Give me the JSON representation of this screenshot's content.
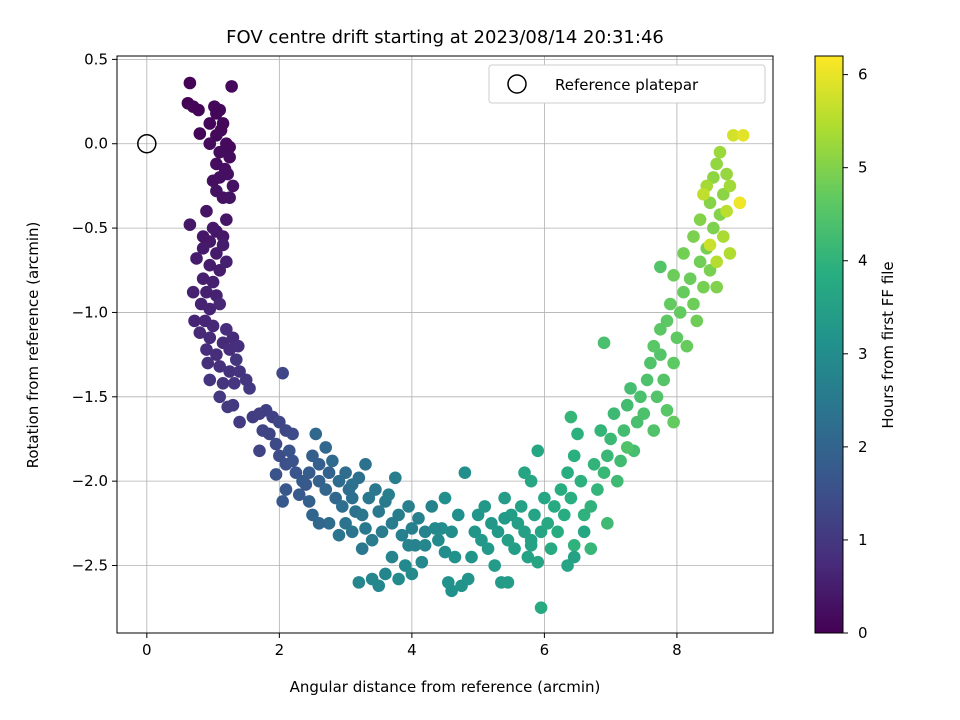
{
  "chart_data": {
    "type": "scatter",
    "title": "FOV centre drift starting at 2023/08/14 20:31:46",
    "xlabel": "Angular distance from reference (arcmin)",
    "ylabel": "Rotation from reference (arcmin)",
    "xlim": [
      -0.45,
      9.45
    ],
    "ylim": [
      -2.9,
      0.52
    ],
    "xticks": [
      0,
      2,
      4,
      6,
      8
    ],
    "yticks": [
      0.5,
      0.0,
      -0.5,
      -1.0,
      -1.5,
      -2.0,
      -2.5
    ],
    "xtick_labels": [
      "0",
      "2",
      "4",
      "6",
      "8"
    ],
    "ytick_labels": [
      "0.5",
      "0.0",
      "−0.5",
      "−1.0",
      "−1.5",
      "−2.0",
      "−2.5"
    ],
    "grid": true,
    "colorbar": {
      "label": "Hours from first FF file",
      "range": [
        0,
        6.2
      ],
      "ticks": [
        0,
        1,
        2,
        3,
        4,
        5,
        6
      ],
      "tick_labels": [
        "0",
        "1",
        "2",
        "3",
        "4",
        "5",
        "6"
      ],
      "colormap": "viridis"
    },
    "legend": {
      "position": "top-right",
      "label": "Reference platepar"
    },
    "reference_point": {
      "x": 0.0,
      "y": 0.0
    },
    "points": [
      [
        0.62,
        0.24,
        0.02
      ],
      [
        0.65,
        0.36,
        0.03
      ],
      [
        0.7,
        0.22,
        0.05
      ],
      [
        0.78,
        0.2,
        0.07
      ],
      [
        0.8,
        0.06,
        0.08
      ],
      [
        0.95,
        0.12,
        0.09
      ],
      [
        1.02,
        0.22,
        0.11
      ],
      [
        1.1,
        0.2,
        0.12
      ],
      [
        1.28,
        0.34,
        0.13
      ],
      [
        1.05,
        0.05,
        0.14
      ],
      [
        1.12,
        0.08,
        0.15
      ],
      [
        1.2,
        0.0,
        0.17
      ],
      [
        0.95,
        0.0,
        0.18
      ],
      [
        1.1,
        -0.05,
        0.19
      ],
      [
        1.25,
        -0.08,
        0.2
      ],
      [
        1.05,
        -0.12,
        0.22
      ],
      [
        1.18,
        -0.15,
        0.23
      ],
      [
        1.0,
        -0.22,
        0.24
      ],
      [
        1.1,
        -0.2,
        0.25
      ],
      [
        1.22,
        -0.18,
        0.26
      ],
      [
        1.3,
        -0.25,
        0.28
      ],
      [
        1.05,
        -0.28,
        0.29
      ],
      [
        1.15,
        -0.32,
        0.3
      ],
      [
        1.25,
        -0.32,
        0.31
      ],
      [
        0.9,
        -0.4,
        0.33
      ],
      [
        1.2,
        -0.45,
        0.35
      ],
      [
        1.05,
        -0.52,
        0.37
      ],
      [
        0.65,
        -0.48,
        0.38
      ],
      [
        1.15,
        -0.55,
        0.4
      ],
      [
        0.95,
        -0.58,
        0.42
      ],
      [
        0.85,
        -0.62,
        0.44
      ],
      [
        1.05,
        -0.65,
        0.45
      ],
      [
        0.75,
        -0.68,
        0.47
      ],
      [
        0.95,
        -0.72,
        0.49
      ],
      [
        1.1,
        -0.75,
        0.5
      ],
      [
        0.85,
        -0.8,
        0.52
      ],
      [
        1.0,
        -0.82,
        0.54
      ],
      [
        0.9,
        -0.88,
        0.56
      ],
      [
        1.05,
        -0.9,
        0.57
      ],
      [
        0.7,
        -0.88,
        0.58
      ],
      [
        0.82,
        -0.95,
        0.6
      ],
      [
        0.95,
        -0.98,
        0.62
      ],
      [
        0.72,
        -1.05,
        0.64
      ],
      [
        0.88,
        -1.05,
        0.66
      ],
      [
        1.0,
        -1.08,
        0.68
      ],
      [
        0.8,
        -1.12,
        0.7
      ],
      [
        0.95,
        -1.15,
        0.72
      ],
      [
        1.15,
        -1.18,
        0.74
      ],
      [
        1.3,
        -1.15,
        0.75
      ],
      [
        0.9,
        -1.22,
        0.77
      ],
      [
        1.05,
        -1.25,
        0.79
      ],
      [
        1.25,
        -1.22,
        0.8
      ],
      [
        1.38,
        -1.2,
        0.82
      ],
      [
        0.92,
        -1.3,
        0.84
      ],
      [
        1.1,
        -1.32,
        0.86
      ],
      [
        1.25,
        -1.35,
        0.88
      ],
      [
        1.4,
        -1.35,
        0.9
      ],
      [
        0.95,
        -1.4,
        0.92
      ],
      [
        1.15,
        -1.42,
        0.94
      ],
      [
        1.32,
        -1.42,
        0.96
      ],
      [
        1.5,
        -1.4,
        0.98
      ],
      [
        1.1,
        -1.5,
        1.0
      ],
      [
        1.3,
        -1.55,
        1.02
      ],
      [
        1.22,
        -1.56,
        1.04
      ],
      [
        1.4,
        -1.65,
        1.06
      ],
      [
        1.6,
        -1.62,
        1.1
      ],
      [
        1.7,
        -1.6,
        1.13
      ],
      [
        1.8,
        -1.58,
        1.16
      ],
      [
        1.9,
        -1.62,
        1.2
      ],
      [
        1.75,
        -1.7,
        1.23
      ],
      [
        1.85,
        -1.72,
        1.26
      ],
      [
        2.0,
        -1.65,
        1.3
      ],
      [
        2.05,
        -1.36,
        1.32
      ],
      [
        2.1,
        -1.7,
        1.35
      ],
      [
        1.95,
        -1.78,
        1.38
      ],
      [
        2.2,
        -1.72,
        1.4
      ],
      [
        2.0,
        -1.85,
        1.45
      ],
      [
        2.1,
        -1.9,
        1.5
      ],
      [
        2.2,
        -1.88,
        1.55
      ],
      [
        1.95,
        -1.96,
        1.58
      ],
      [
        2.25,
        -1.95,
        1.62
      ],
      [
        2.4,
        -2.02,
        1.66
      ],
      [
        2.1,
        -2.05,
        1.7
      ],
      [
        2.05,
        -2.12,
        1.73
      ],
      [
        2.3,
        -2.08,
        1.76
      ],
      [
        2.45,
        -1.95,
        1.8
      ],
      [
        2.5,
        -1.85,
        1.83
      ],
      [
        2.6,
        -1.9,
        1.86
      ],
      [
        2.45,
        -2.12,
        1.9
      ],
      [
        2.6,
        -2.0,
        1.93
      ],
      [
        2.75,
        -1.95,
        1.96
      ],
      [
        2.5,
        -2.2,
        2.0
      ],
      [
        2.7,
        -2.05,
        2.03
      ],
      [
        2.85,
        -2.1,
        2.06
      ],
      [
        2.55,
        -1.72,
        2.08
      ],
      [
        2.7,
        -1.8,
        2.1
      ],
      [
        2.8,
        -1.88,
        2.12
      ],
      [
        2.9,
        -2.0,
        2.15
      ],
      [
        3.0,
        -1.95,
        2.18
      ],
      [
        3.05,
        -2.05,
        2.2
      ],
      [
        2.95,
        -2.15,
        2.22
      ],
      [
        3.1,
        -2.1,
        2.25
      ],
      [
        3.2,
        -1.98,
        2.28
      ],
      [
        3.3,
        -1.9,
        2.3
      ],
      [
        3.15,
        -2.18,
        2.32
      ],
      [
        3.0,
        -2.25,
        2.35
      ],
      [
        3.1,
        -2.3,
        2.38
      ],
      [
        2.9,
        -2.32,
        2.4
      ],
      [
        3.25,
        -2.2,
        2.42
      ],
      [
        3.35,
        -2.1,
        2.44
      ],
      [
        3.45,
        -2.05,
        2.46
      ],
      [
        3.3,
        -2.28,
        2.48
      ],
      [
        3.5,
        -2.18,
        2.5
      ],
      [
        3.6,
        -2.12,
        2.52
      ],
      [
        3.4,
        -2.35,
        2.54
      ],
      [
        3.55,
        -2.3,
        2.56
      ],
      [
        3.7,
        -2.25,
        2.58
      ],
      [
        3.8,
        -2.2,
        2.6
      ],
      [
        3.75,
        -1.98,
        2.62
      ],
      [
        3.95,
        -2.15,
        2.64
      ],
      [
        4.0,
        -2.28,
        2.66
      ],
      [
        3.85,
        -2.32,
        2.68
      ],
      [
        4.1,
        -2.22,
        2.7
      ],
      [
        4.2,
        -2.3,
        2.72
      ],
      [
        4.05,
        -2.38,
        2.74
      ],
      [
        4.3,
        -2.15,
        2.76
      ],
      [
        3.7,
        -2.45,
        2.78
      ],
      [
        3.6,
        -2.55,
        2.8
      ],
      [
        3.4,
        -2.58,
        2.82
      ],
      [
        3.2,
        -2.6,
        2.84
      ],
      [
        3.5,
        -2.62,
        2.86
      ],
      [
        4.15,
        -2.48,
        2.88
      ],
      [
        3.9,
        -2.5,
        2.9
      ],
      [
        4.0,
        -2.55,
        2.92
      ],
      [
        3.8,
        -2.58,
        2.94
      ],
      [
        4.4,
        -2.35,
        2.96
      ],
      [
        4.5,
        -2.42,
        2.98
      ],
      [
        4.45,
        -2.28,
        3.0
      ],
      [
        4.6,
        -2.3,
        3.02
      ],
      [
        4.7,
        -2.2,
        3.04
      ],
      [
        4.8,
        -1.95,
        3.06
      ],
      [
        4.5,
        -2.1,
        3.08
      ],
      [
        4.65,
        -2.45,
        3.1
      ],
      [
        4.55,
        -2.6,
        3.12
      ],
      [
        4.6,
        -2.65,
        3.14
      ],
      [
        4.75,
        -2.62,
        3.16
      ],
      [
        4.85,
        -2.58,
        3.18
      ],
      [
        4.95,
        -2.3,
        3.2
      ],
      [
        4.9,
        -2.45,
        3.22
      ],
      [
        5.0,
        -2.2,
        3.24
      ],
      [
        5.05,
        -2.35,
        3.26
      ],
      [
        5.1,
        -2.15,
        3.28
      ],
      [
        5.2,
        -2.25,
        3.3
      ],
      [
        5.15,
        -2.4,
        3.32
      ],
      [
        5.3,
        -2.3,
        3.34
      ],
      [
        5.25,
        -2.5,
        3.36
      ],
      [
        5.35,
        -2.6,
        3.38
      ],
      [
        5.4,
        -2.1,
        3.4
      ],
      [
        5.5,
        -2.2,
        3.42
      ],
      [
        5.45,
        -2.35,
        3.44
      ],
      [
        5.55,
        -2.4,
        3.46
      ],
      [
        5.6,
        -2.25,
        3.48
      ],
      [
        5.7,
        -2.3,
        3.5
      ],
      [
        5.65,
        -2.15,
        3.52
      ],
      [
        5.75,
        -2.45,
        3.54
      ],
      [
        5.8,
        -2.35,
        3.56
      ],
      [
        5.85,
        -2.2,
        3.58
      ],
      [
        5.9,
        -2.48,
        3.6
      ],
      [
        5.95,
        -2.3,
        3.62
      ],
      [
        5.7,
        -1.95,
        3.64
      ],
      [
        5.8,
        -2.0,
        3.66
      ],
      [
        5.9,
        -1.82,
        3.68
      ],
      [
        6.0,
        -2.1,
        3.7
      ],
      [
        6.05,
        -2.25,
        3.72
      ],
      [
        6.1,
        -2.4,
        3.74
      ],
      [
        5.95,
        -2.75,
        3.76
      ],
      [
        6.15,
        -2.15,
        3.78
      ],
      [
        6.2,
        -2.3,
        3.8
      ],
      [
        6.3,
        -2.2,
        3.82
      ],
      [
        6.25,
        -2.05,
        3.84
      ],
      [
        6.35,
        -1.95,
        3.86
      ],
      [
        6.4,
        -2.1,
        3.88
      ],
      [
        6.45,
        -1.85,
        3.9
      ],
      [
        6.5,
        -1.72,
        3.92
      ],
      [
        6.55,
        -2.0,
        3.94
      ],
      [
        6.6,
        -2.2,
        3.96
      ],
      [
        6.45,
        -2.38,
        3.98
      ],
      [
        6.7,
        -2.15,
        4.0
      ],
      [
        6.75,
        -1.9,
        4.02
      ],
      [
        6.8,
        -2.05,
        4.04
      ],
      [
        6.85,
        -1.7,
        4.06
      ],
      [
        6.4,
        -1.62,
        4.08
      ],
      [
        6.7,
        -2.4,
        4.1
      ],
      [
        6.9,
        -1.95,
        4.12
      ],
      [
        6.95,
        -1.85,
        4.14
      ],
      [
        7.0,
        -1.75,
        4.16
      ],
      [
        7.05,
        -1.6,
        4.18
      ],
      [
        6.95,
        -2.25,
        4.2
      ],
      [
        7.1,
        -2.0,
        4.22
      ],
      [
        7.15,
        -1.88,
        4.24
      ],
      [
        7.2,
        -1.7,
        4.26
      ],
      [
        7.25,
        -1.55,
        4.28
      ],
      [
        7.3,
        -1.45,
        4.3
      ],
      [
        7.35,
        -1.82,
        4.32
      ],
      [
        7.4,
        -1.65,
        4.34
      ],
      [
        6.9,
        -1.18,
        4.36
      ],
      [
        7.45,
        -1.5,
        4.38
      ],
      [
        7.5,
        -1.6,
        4.4
      ],
      [
        7.55,
        -1.4,
        4.42
      ],
      [
        7.6,
        -1.3,
        4.44
      ],
      [
        7.65,
        -1.7,
        4.46
      ],
      [
        7.7,
        -1.5,
        4.48
      ],
      [
        7.75,
        -1.25,
        4.5
      ],
      [
        7.8,
        -1.4,
        4.52
      ],
      [
        7.85,
        -1.58,
        4.55
      ],
      [
        7.65,
        -1.2,
        4.58
      ],
      [
        7.75,
        -1.1,
        4.6
      ],
      [
        7.85,
        -1.05,
        4.62
      ],
      [
        7.95,
        -1.3,
        4.64
      ],
      [
        8.0,
        -1.15,
        4.66
      ],
      [
        7.9,
        -0.95,
        4.68
      ],
      [
        8.05,
        -1.0,
        4.7
      ],
      [
        8.1,
        -0.88,
        4.72
      ],
      [
        8.15,
        -1.2,
        4.74
      ],
      [
        8.2,
        -0.8,
        4.76
      ],
      [
        7.95,
        -0.78,
        4.78
      ],
      [
        8.25,
        -0.95,
        4.8
      ],
      [
        8.3,
        -1.05,
        4.82
      ],
      [
        8.35,
        -0.7,
        4.84
      ],
      [
        8.1,
        -0.65,
        4.86
      ],
      [
        8.4,
        -0.85,
        4.88
      ],
      [
        8.45,
        -0.62,
        4.9
      ],
      [
        8.5,
        -0.75,
        4.92
      ],
      [
        8.25,
        -0.55,
        4.94
      ],
      [
        8.55,
        -0.5,
        4.96
      ],
      [
        8.6,
        -0.85,
        4.98
      ],
      [
        8.65,
        -0.42,
        5.0
      ],
      [
        8.35,
        -0.45,
        5.02
      ],
      [
        8.5,
        -0.35,
        5.05
      ],
      [
        8.7,
        -0.3,
        5.08
      ],
      [
        8.55,
        -0.2,
        5.12
      ],
      [
        8.6,
        -0.12,
        5.16
      ],
      [
        8.75,
        -0.18,
        5.2
      ],
      [
        8.65,
        -0.05,
        5.25
      ],
      [
        8.8,
        -0.25,
        5.3
      ],
      [
        8.45,
        -0.25,
        5.35
      ],
      [
        8.7,
        -0.55,
        5.4
      ],
      [
        8.8,
        -0.65,
        5.45
      ],
      [
        8.6,
        -0.7,
        5.5
      ],
      [
        8.75,
        -0.4,
        5.55
      ],
      [
        8.85,
        0.05,
        5.8
      ],
      [
        9.0,
        0.05,
        5.95
      ],
      [
        8.95,
        -0.35,
        6.05
      ],
      [
        8.4,
        -0.3,
        5.6
      ],
      [
        8.5,
        -0.6,
        5.7
      ],
      [
        7.25,
        -1.8,
        4.45
      ],
      [
        7.95,
        -1.65,
        4.7
      ],
      [
        7.75,
        -0.73,
        4.5
      ],
      [
        6.6,
        -2.3,
        3.7
      ],
      [
        6.35,
        -2.5,
        3.6
      ],
      [
        6.45,
        -2.45,
        3.55
      ],
      [
        5.8,
        -2.38,
        3.52
      ],
      [
        5.45,
        -2.6,
        3.4
      ],
      [
        5.4,
        -2.22,
        3.35
      ],
      [
        4.35,
        -2.28,
        2.9
      ],
      [
        4.2,
        -2.38,
        2.85
      ],
      [
        3.95,
        -2.38,
        2.75
      ],
      [
        3.65,
        -2.08,
        2.65
      ],
      [
        3.25,
        -2.4,
        2.45
      ],
      [
        3.1,
        -2.02,
        2.3
      ],
      [
        2.75,
        -2.25,
        2.15
      ],
      [
        2.6,
        -2.25,
        2.05
      ],
      [
        2.35,
        -2.0,
        1.75
      ],
      [
        2.15,
        -1.82,
        1.58
      ],
      [
        1.7,
        -1.82,
        1.25
      ],
      [
        1.55,
        -1.45,
        1.02
      ],
      [
        1.35,
        -1.28,
        0.95
      ],
      [
        1.2,
        -1.1,
        0.78
      ],
      [
        1.1,
        -0.95,
        0.68
      ],
      [
        1.15,
        -0.6,
        0.5
      ],
      [
        1.2,
        -0.7,
        0.55
      ],
      [
        1.0,
        -0.5,
        0.41
      ],
      [
        0.85,
        -0.55,
        0.39
      ],
      [
        1.25,
        -0.02,
        0.15
      ],
      [
        1.15,
        0.12,
        0.1
      ],
      [
        1.05,
        0.18,
        0.08
      ]
    ]
  }
}
